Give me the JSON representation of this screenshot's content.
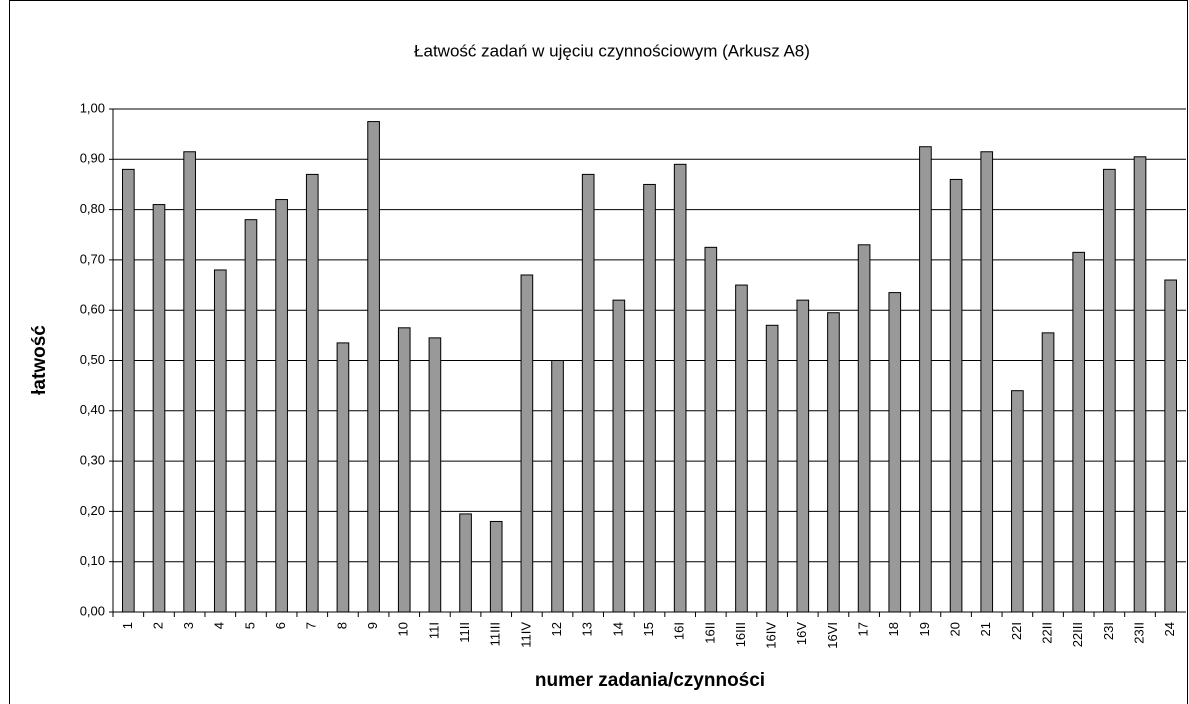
{
  "chart_data": {
    "type": "bar",
    "title": "Łatwość zadań w ujęciu czynnościowym (Arkusz A8)",
    "y_label": "łatwość",
    "x_label": "numer zadania/czynności",
    "categories": [
      "1",
      "2",
      "3",
      "4",
      "5",
      "6",
      "7",
      "8",
      "9",
      "10",
      "11I",
      "11II",
      "11III",
      "11IV",
      "12",
      "13",
      "14",
      "15",
      "16I",
      "16II",
      "16III",
      "16IV",
      "16V",
      "16VI",
      "17",
      "18",
      "19",
      "20",
      "21",
      "22I",
      "22II",
      "22III",
      "23I",
      "23II",
      "24"
    ],
    "values": [
      0.88,
      0.81,
      0.915,
      0.68,
      0.78,
      0.82,
      0.87,
      0.535,
      0.975,
      0.565,
      0.545,
      0.195,
      0.18,
      0.67,
      0.5,
      0.87,
      0.62,
      0.85,
      0.89,
      0.725,
      0.65,
      0.57,
      0.62,
      0.595,
      0.73,
      0.635,
      0.925,
      0.86,
      0.915,
      0.44,
      0.555,
      0.715,
      0.88,
      0.905,
      0.66
    ],
    "color": "#999999",
    "ylim": [
      0,
      1
    ],
    "yticks": [
      {
        "value": 0,
        "label": "0,00"
      },
      {
        "value": 0.1,
        "label": "0,10"
      },
      {
        "value": 0.2,
        "label": "0,20"
      },
      {
        "value": 0.3,
        "label": "0,30"
      },
      {
        "value": 0.4,
        "label": "0,40"
      },
      {
        "value": 0.5,
        "label": "0,50"
      },
      {
        "value": 0.6,
        "label": "0,60"
      },
      {
        "value": 0.7,
        "label": "0,70"
      },
      {
        "value": 0.8,
        "label": "0,80"
      },
      {
        "value": 0.9,
        "label": "0,90"
      },
      {
        "value": 1,
        "label": "1,00"
      }
    ],
    "grid": true
  }
}
